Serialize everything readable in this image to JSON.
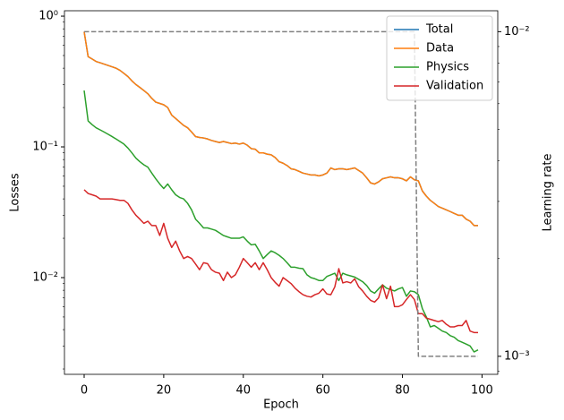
{
  "chart_data": {
    "type": "line",
    "x_label": "Epoch",
    "y_label": "Losses",
    "y2_label": "Learning rate",
    "x": [
      0,
      1,
      2,
      3,
      4,
      5,
      6,
      7,
      8,
      9,
      10,
      11,
      12,
      13,
      14,
      15,
      16,
      17,
      18,
      19,
      20,
      21,
      22,
      23,
      24,
      25,
      26,
      27,
      28,
      29,
      30,
      31,
      32,
      33,
      34,
      35,
      36,
      37,
      38,
      39,
      40,
      41,
      42,
      43,
      44,
      45,
      46,
      47,
      48,
      49,
      50,
      51,
      52,
      53,
      54,
      55,
      56,
      57,
      58,
      59,
      60,
      61,
      62,
      63,
      64,
      65,
      66,
      67,
      68,
      69,
      70,
      71,
      72,
      73,
      74,
      75,
      76,
      77,
      78,
      79,
      80,
      81,
      82,
      83,
      84,
      85,
      86,
      87,
      88,
      89,
      90,
      91,
      92,
      93,
      94,
      95,
      96,
      97,
      98,
      99
    ],
    "xlim": [
      -4.95,
      103.95
    ],
    "xticks": [
      0,
      20,
      40,
      60,
      80,
      100
    ],
    "ylog": true,
    "ylim": [
      0.00182,
      1.1
    ],
    "yticks": [
      {
        "value": 0.01,
        "label": "10⁻²"
      },
      {
        "value": 0.1,
        "label": "10⁻¹"
      },
      {
        "value": 1,
        "label": "10⁰"
      }
    ],
    "y2log": true,
    "y2lim": [
      0.00088,
      0.0116
    ],
    "y2ticks": [
      {
        "value": 0.001,
        "label": "10⁻³"
      },
      {
        "value": 0.01,
        "label": "10⁻²"
      }
    ],
    "legend": "upper right",
    "series": [
      {
        "name": "Total",
        "color": "#1f77b4",
        "values": [
          0.76,
          0.49,
          0.47,
          0.45,
          0.44,
          0.43,
          0.42,
          0.41,
          0.4,
          0.385,
          0.365,
          0.345,
          0.32,
          0.3,
          0.285,
          0.27,
          0.255,
          0.235,
          0.22,
          0.215,
          0.21,
          0.2,
          0.175,
          0.165,
          0.155,
          0.146,
          0.14,
          0.13,
          0.12,
          0.118,
          0.117,
          0.115,
          0.112,
          0.11,
          0.108,
          0.11,
          0.108,
          0.106,
          0.107,
          0.105,
          0.107,
          0.103,
          0.097,
          0.096,
          0.09,
          0.09,
          0.088,
          0.087,
          0.083,
          0.077,
          0.075,
          0.072,
          0.068,
          0.067,
          0.065,
          0.063,
          0.062,
          0.061,
          0.061,
          0.06,
          0.061,
          0.063,
          0.069,
          0.067,
          0.068,
          0.068,
          0.067,
          0.068,
          0.069,
          0.066,
          0.063,
          0.058,
          0.053,
          0.052,
          0.054,
          0.057,
          0.058,
          0.059,
          0.058,
          0.058,
          0.057,
          0.055,
          0.059,
          0.056,
          0.055,
          0.046,
          0.042,
          0.039,
          0.037,
          0.035,
          0.034,
          0.033,
          0.032,
          0.031,
          0.03,
          0.03,
          0.028,
          0.027,
          0.025,
          0.025
        ]
      },
      {
        "name": "Data",
        "color": "#ff7f0e",
        "values": [
          0.76,
          0.49,
          0.47,
          0.45,
          0.44,
          0.43,
          0.42,
          0.41,
          0.4,
          0.385,
          0.365,
          0.345,
          0.32,
          0.3,
          0.285,
          0.27,
          0.255,
          0.235,
          0.22,
          0.215,
          0.21,
          0.2,
          0.175,
          0.165,
          0.155,
          0.146,
          0.14,
          0.13,
          0.12,
          0.118,
          0.117,
          0.115,
          0.112,
          0.11,
          0.108,
          0.11,
          0.108,
          0.106,
          0.107,
          0.105,
          0.107,
          0.103,
          0.097,
          0.096,
          0.09,
          0.09,
          0.088,
          0.087,
          0.083,
          0.077,
          0.075,
          0.072,
          0.068,
          0.067,
          0.065,
          0.063,
          0.062,
          0.061,
          0.061,
          0.06,
          0.061,
          0.063,
          0.069,
          0.067,
          0.068,
          0.068,
          0.067,
          0.068,
          0.069,
          0.066,
          0.063,
          0.058,
          0.053,
          0.052,
          0.054,
          0.057,
          0.058,
          0.059,
          0.058,
          0.058,
          0.057,
          0.055,
          0.059,
          0.056,
          0.055,
          0.046,
          0.042,
          0.039,
          0.037,
          0.035,
          0.034,
          0.033,
          0.032,
          0.031,
          0.03,
          0.03,
          0.028,
          0.027,
          0.025,
          0.025
        ]
      },
      {
        "name": "Physics",
        "color": "#2ca02c",
        "values": [
          0.27,
          0.158,
          0.148,
          0.14,
          0.135,
          0.13,
          0.125,
          0.12,
          0.115,
          0.11,
          0.105,
          0.098,
          0.09,
          0.082,
          0.077,
          0.073,
          0.07,
          0.063,
          0.057,
          0.052,
          0.048,
          0.052,
          0.047,
          0.043,
          0.041,
          0.04,
          0.037,
          0.033,
          0.028,
          0.026,
          0.024,
          0.024,
          0.0235,
          0.023,
          0.022,
          0.021,
          0.0205,
          0.02,
          0.02,
          0.02,
          0.0205,
          0.019,
          0.0178,
          0.018,
          0.016,
          0.014,
          0.015,
          0.016,
          0.0155,
          0.0148,
          0.014,
          0.013,
          0.012,
          0.012,
          0.0118,
          0.0117,
          0.0105,
          0.01,
          0.0098,
          0.0095,
          0.0095,
          0.0102,
          0.0105,
          0.0108,
          0.0095,
          0.0108,
          0.0105,
          0.0103,
          0.0101,
          0.0097,
          0.0093,
          0.0087,
          0.0079,
          0.0076,
          0.0082,
          0.0088,
          0.0083,
          0.0081,
          0.0079,
          0.0082,
          0.0084,
          0.0072,
          0.0079,
          0.0078,
          0.0074,
          0.0058,
          0.005,
          0.0042,
          0.0043,
          0.0041,
          0.0039,
          0.0038,
          0.0036,
          0.0035,
          0.0033,
          0.0032,
          0.0031,
          0.003,
          0.0027,
          0.0028
        ]
      },
      {
        "name": "Validation",
        "color": "#d62728",
        "values": [
          0.047,
          0.044,
          0.043,
          0.042,
          0.04,
          0.04,
          0.04,
          0.04,
          0.0395,
          0.039,
          0.039,
          0.037,
          0.033,
          0.03,
          0.028,
          0.026,
          0.027,
          0.025,
          0.025,
          0.021,
          0.026,
          0.02,
          0.017,
          0.019,
          0.016,
          0.014,
          0.0145,
          0.014,
          0.0127,
          0.0115,
          0.013,
          0.0128,
          0.0115,
          0.011,
          0.0108,
          0.0095,
          0.011,
          0.01,
          0.0105,
          0.012,
          0.014,
          0.013,
          0.012,
          0.013,
          0.0115,
          0.013,
          0.0115,
          0.01,
          0.0092,
          0.0086,
          0.01,
          0.0095,
          0.009,
          0.0083,
          0.0078,
          0.0074,
          0.0072,
          0.0071,
          0.0074,
          0.0076,
          0.0082,
          0.0075,
          0.0074,
          0.0085,
          0.0117,
          0.0091,
          0.0093,
          0.0091,
          0.0098,
          0.0085,
          0.0079,
          0.0072,
          0.0067,
          0.0065,
          0.007,
          0.0088,
          0.0069,
          0.0086,
          0.006,
          0.006,
          0.0062,
          0.0068,
          0.0074,
          0.0068,
          0.0053,
          0.0053,
          0.0049,
          0.0048,
          0.0047,
          0.0046,
          0.0047,
          0.0044,
          0.0042,
          0.0042,
          0.0043,
          0.0043,
          0.0047,
          0.0039,
          0.0038,
          0.0038
        ]
      },
      {
        "axis": "y2",
        "color": "#808080",
        "linestyle": "dashed",
        "values": [
          0.01,
          0.01,
          0.01,
          0.01,
          0.01,
          0.01,
          0.01,
          0.01,
          0.01,
          0.01,
          0.01,
          0.01,
          0.01,
          0.01,
          0.01,
          0.01,
          0.01,
          0.01,
          0.01,
          0.01,
          0.01,
          0.01,
          0.01,
          0.01,
          0.01,
          0.01,
          0.01,
          0.01,
          0.01,
          0.01,
          0.01,
          0.01,
          0.01,
          0.01,
          0.01,
          0.01,
          0.01,
          0.01,
          0.01,
          0.01,
          0.01,
          0.01,
          0.01,
          0.01,
          0.01,
          0.01,
          0.01,
          0.01,
          0.01,
          0.01,
          0.01,
          0.01,
          0.01,
          0.01,
          0.01,
          0.01,
          0.01,
          0.01,
          0.01,
          0.01,
          0.01,
          0.01,
          0.01,
          0.01,
          0.01,
          0.01,
          0.01,
          0.01,
          0.01,
          0.01,
          0.01,
          0.01,
          0.01,
          0.01,
          0.01,
          0.01,
          0.01,
          0.01,
          0.01,
          0.01,
          0.01,
          0.01,
          0.01,
          0.01,
          0.001,
          0.001,
          0.001,
          0.001,
          0.001,
          0.001,
          0.001,
          0.001,
          0.001,
          0.001,
          0.001,
          0.001,
          0.001,
          0.001,
          0.001,
          0.001
        ]
      }
    ]
  }
}
